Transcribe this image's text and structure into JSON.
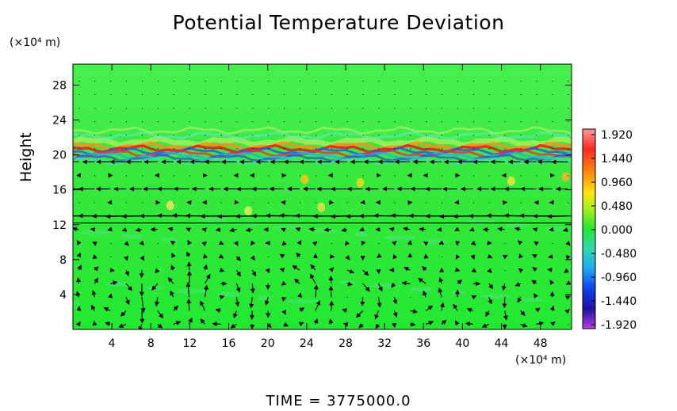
{
  "chart_data": {
    "type": "heatmap",
    "title": "Potential Temperature Deviation",
    "xlabel": "",
    "ylabel": "Height",
    "x_unit": "(×10⁴ m)",
    "y_unit": "(×10⁴ m)",
    "footer": "TIME  =  3775000.0",
    "x_ticks": [
      4,
      8,
      12,
      16,
      20,
      24,
      28,
      32,
      36,
      40,
      44,
      48
    ],
    "y_ticks": [
      4,
      8,
      12,
      16,
      20,
      24,
      28
    ],
    "xlim": [
      0,
      51.2
    ],
    "ylim": [
      0,
      30.4
    ],
    "colorbar": {
      "ticks": [
        "1.920",
        "1.440",
        "0.960",
        "0.480",
        "0.000",
        "-0.480",
        "-0.960",
        "-1.440",
        "-1.920"
      ],
      "range": [
        -1.92,
        1.92
      ]
    },
    "features": {
      "background_value": 0.0,
      "tropopause_band_center": 20.5,
      "strong_wind_levels": [
        12.2,
        13.0,
        16.2,
        19.3
      ],
      "vortex_centers_x": [
        5.5,
        9.5,
        15.5,
        23.5,
        28.5,
        35.5,
        42.0,
        47.0
      ],
      "vortex_center_y": 3.5
    }
  },
  "colors": {
    "field_base": "#22e830",
    "upper_field": "#46f04c",
    "cyan": "#34d8c8",
    "arrow": "#000000"
  }
}
